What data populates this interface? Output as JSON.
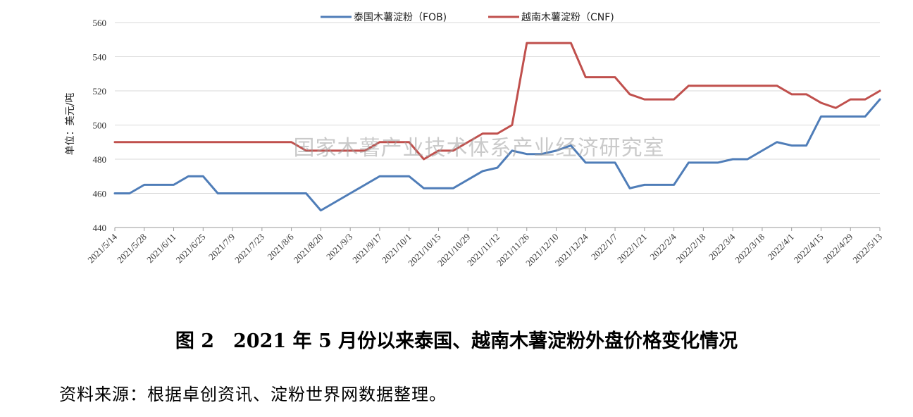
{
  "caption": "图 2　2021 年 5 月份以来泰国、越南木薯淀粉外盘价格变化情况",
  "source_note": "资料来源：根据卓创资讯、淀粉世界网数据整理。",
  "watermark": "国家木薯产业技术体系产业经济研究室",
  "chart_data": {
    "type": "line",
    "ylabel": "单位：美元/吨",
    "ylim": [
      440,
      560
    ],
    "yticks": [
      440,
      460,
      480,
      500,
      520,
      540,
      560
    ],
    "grid": true,
    "legend_position": "top-center",
    "x_tick_labels": [
      "2021/5/14",
      "2021/5/28",
      "2021/6/11",
      "2021/6/25",
      "2021/7/9",
      "2021/7/23",
      "2021/8/6",
      "2021/8/20",
      "2021/9/3",
      "2021/9/17",
      "2021/10/1",
      "2021/10/15",
      "2021/10/29",
      "2021/11/12",
      "2021/11/26",
      "2021/12/10",
      "2021/12/24",
      "2022/1/7",
      "2022/1/21",
      "2022/2/4",
      "2022/2/18",
      "2022/3/4",
      "2022/3/18",
      "2022/4/1",
      "2022/4/15",
      "2022/4/29",
      "2022/5/13"
    ],
    "x": [
      "2021/5/14",
      "2021/5/21",
      "2021/5/28",
      "2021/6/4",
      "2021/6/11",
      "2021/6/18",
      "2021/6/25",
      "2021/7/2",
      "2021/7/9",
      "2021/7/16",
      "2021/7/23",
      "2021/7/30",
      "2021/8/6",
      "2021/8/13",
      "2021/8/20",
      "2021/8/27",
      "2021/9/3",
      "2021/9/10",
      "2021/9/17",
      "2021/9/24",
      "2021/10/1",
      "2021/10/8",
      "2021/10/15",
      "2021/10/22",
      "2021/10/29",
      "2021/11/5",
      "2021/11/12",
      "2021/11/19",
      "2021/11/26",
      "2021/12/3",
      "2021/12/10",
      "2021/12/17",
      "2021/12/24",
      "2021/12/31",
      "2022/1/7",
      "2022/1/14",
      "2022/1/21",
      "2022/1/28",
      "2022/2/4",
      "2022/2/11",
      "2022/2/18",
      "2022/2/25",
      "2022/3/4",
      "2022/3/11",
      "2022/3/18",
      "2022/3/25",
      "2022/4/1",
      "2022/4/8",
      "2022/4/15",
      "2022/4/22",
      "2022/4/29",
      "2022/5/6",
      "2022/5/13"
    ],
    "series": [
      {
        "name": "泰国木薯淀粉（FOB)",
        "color": "#4f7db8",
        "values": [
          460,
          460,
          465,
          465,
          465,
          470,
          470,
          460,
          460,
          460,
          460,
          460,
          460,
          460,
          450,
          455,
          460,
          465,
          470,
          470,
          470,
          463,
          463,
          463,
          468,
          473,
          475,
          485,
          483,
          483,
          485,
          488,
          478,
          478,
          478,
          463,
          465,
          465,
          465,
          478,
          478,
          478,
          480,
          480,
          485,
          490,
          488,
          488,
          505,
          505,
          505,
          505,
          515
        ]
      },
      {
        "name": "越南木薯淀粉（CNF)",
        "color": "#c0504d",
        "values": [
          490,
          490,
          490,
          490,
          490,
          490,
          490,
          490,
          490,
          490,
          490,
          490,
          490,
          485,
          485,
          485,
          485,
          485,
          490,
          490,
          490,
          480,
          485,
          485,
          490,
          495,
          495,
          500,
          548,
          548,
          548,
          548,
          528,
          528,
          528,
          518,
          515,
          515,
          515,
          523,
          523,
          523,
          523,
          523,
          523,
          523,
          518,
          518,
          513,
          510,
          515,
          515,
          520
        ]
      }
    ]
  }
}
